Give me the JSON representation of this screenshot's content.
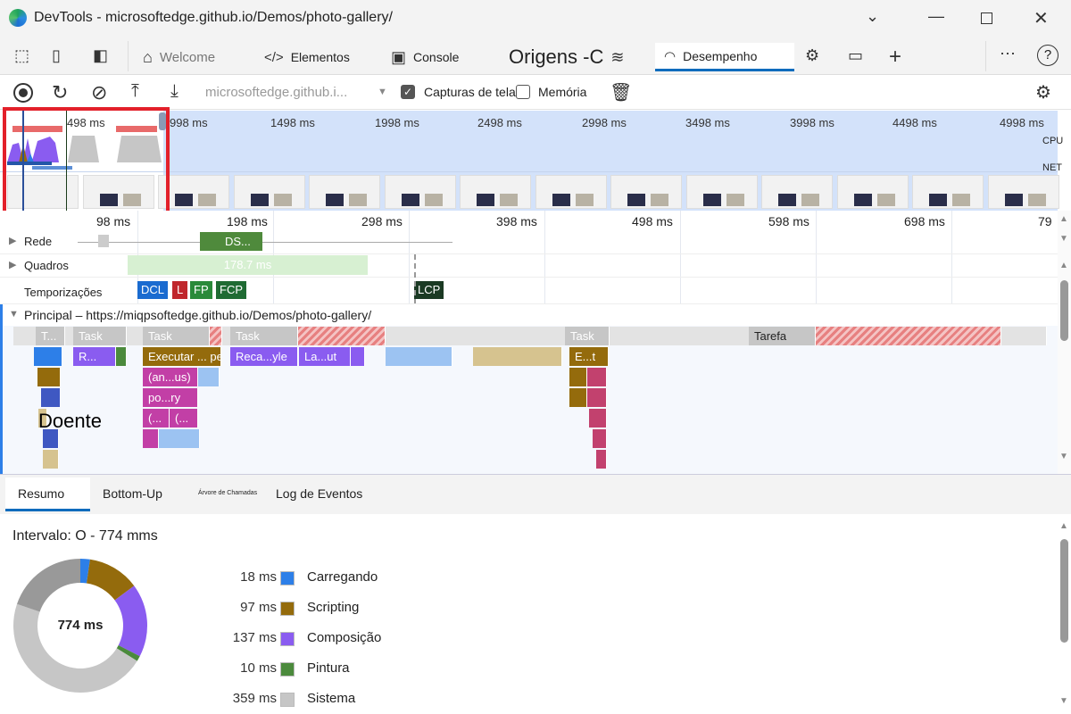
{
  "window": {
    "title": "DevTools - microsoftedge.github.io/Demos/photo-gallery/",
    "controls": [
      "minimize",
      "maximize",
      "close"
    ]
  },
  "tabs": [
    {
      "label": "Welcome",
      "icon": "home-icon"
    },
    {
      "label": "Elementos",
      "icon": "code-icon"
    },
    {
      "label": "Console",
      "icon": "console-icon"
    },
    {
      "label": "Origens -C",
      "icon": "wifi-icon"
    },
    {
      "label": "Desempenho",
      "icon": "performance-icon",
      "active": true
    }
  ],
  "toolbar": {
    "url": "microsoftedge.github.i...",
    "screenshots_label": "Capturas de tela",
    "screenshots_checked": true,
    "memory_label": "Memória",
    "memory_checked": false
  },
  "overview": {
    "ticks": [
      "498 ms",
      "998 ms",
      "1498 ms",
      "1998 ms",
      "2498 ms",
      "2998 ms",
      "3498 ms",
      "3998 ms",
      "4498 ms",
      "4998 ms"
    ],
    "cpu_label": "CPU",
    "net_label": "NET"
  },
  "ruler": [
    "98 ms",
    "198 ms",
    "298 ms",
    "398 ms",
    "498 ms",
    "598 ms",
    "698 ms",
    "79"
  ],
  "tracks": {
    "network": {
      "label": "Rede",
      "item": "DS..."
    },
    "frames": {
      "label": "Quadros",
      "item": "178.7 ms"
    },
    "timings": {
      "label": "Temporizações",
      "markers": [
        "DCL",
        "L",
        "FP",
        "FCP",
        "LCP"
      ]
    },
    "main": {
      "label": "Principal – https://miqpsoftedge.github.io/Demos/photo-gallery/",
      "blocks": [
        "T...",
        "Task",
        "Task",
        "Task",
        "Task",
        "Tarefa",
        "R...",
        "Executar ... perguntas",
        "Reca...yle",
        "La...ut",
        "E...t",
        "(an...us)",
        "po...ry",
        "(...",
        "(...",
        "Doente"
      ]
    }
  },
  "bottom_tabs": [
    "Resumo",
    "Bottom-Up",
    "Árvore de Chamadas",
    "Log de Eventos"
  ],
  "summary": {
    "range": "Intervalo: O - 774 mms",
    "total": "774 ms",
    "items": [
      {
        "value": "18 ms",
        "ms": 18,
        "label": "Carregando",
        "color": "#2d7fe8"
      },
      {
        "value": "97 ms",
        "ms": 97,
        "label": "Scripting",
        "color": "#946b0c"
      },
      {
        "value": "137 ms",
        "ms": 137,
        "label": "Composição",
        "color": "#8a5cf0"
      },
      {
        "value": "10 ms",
        "ms": 10,
        "label": "Pintura",
        "color": "#4b8a3c"
      },
      {
        "value": "359 ms",
        "ms": 359,
        "label": "Sistema",
        "color": "#c6c6c6"
      }
    ],
    "total_ms": 774,
    "idle_color": "#999999"
  }
}
